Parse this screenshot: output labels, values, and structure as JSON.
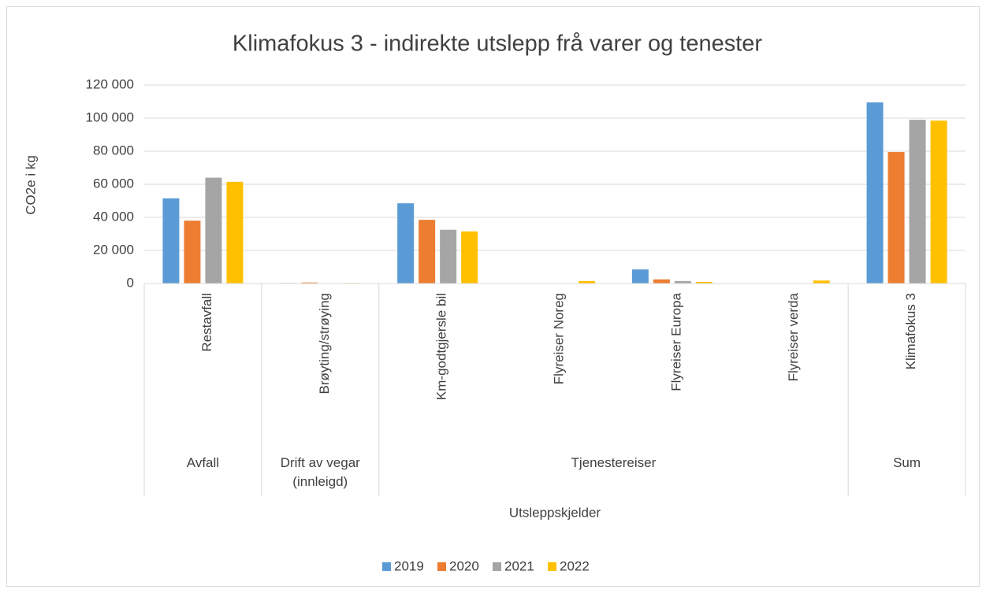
{
  "chart_data": {
    "type": "bar",
    "title": "Klimafokus 3 - indirekte utslepp frå varer og tenester",
    "y_label": "CO2e i kg",
    "x_label": "Utsleppskjelder",
    "groups": [
      {
        "name": "Avfall",
        "categories": [
          "Restavfall"
        ]
      },
      {
        "name": "Drift av vegar (innleigd)",
        "categories": [
          "Brøyting/strøying"
        ]
      },
      {
        "name": "Tjenestereiser",
        "categories": [
          "Km-godtgjersle bil",
          "Flyreiser Noreg",
          "Flyreiser Europa",
          "Flyreiser verda"
        ]
      },
      {
        "name": "Sum",
        "categories": [
          "Klimafokus 3"
        ]
      }
    ],
    "series": [
      {
        "name": "2019",
        "color": "#5b9bd5",
        "values": [
          51500,
          300,
          48500,
          0,
          8500,
          0,
          109500
        ]
      },
      {
        "name": "2020",
        "color": "#ed7d31",
        "values": [
          38000,
          600,
          38500,
          0,
          2500,
          0,
          79500
        ]
      },
      {
        "name": "2021",
        "color": "#a5a5a5",
        "values": [
          64000,
          100,
          32500,
          0,
          1500,
          0,
          99000
        ]
      },
      {
        "name": "2022",
        "color": "#ffc000",
        "values": [
          61500,
          300,
          31500,
          1500,
          1000,
          1800,
          98500
        ]
      }
    ],
    "ylim": [
      0,
      120000
    ],
    "yticks": [
      0,
      {
        "value": 20000,
        "label": "20 000"
      },
      {
        "value": 40000,
        "label": "40 000"
      },
      {
        "value": 60000,
        "label": "60 000"
      },
      {
        "value": 80000,
        "label": "80 000"
      },
      {
        "value": 100000,
        "label": "100 000"
      },
      {
        "value": 120000,
        "label": "120 000"
      }
    ],
    "grid": true,
    "legend": "bottom"
  }
}
